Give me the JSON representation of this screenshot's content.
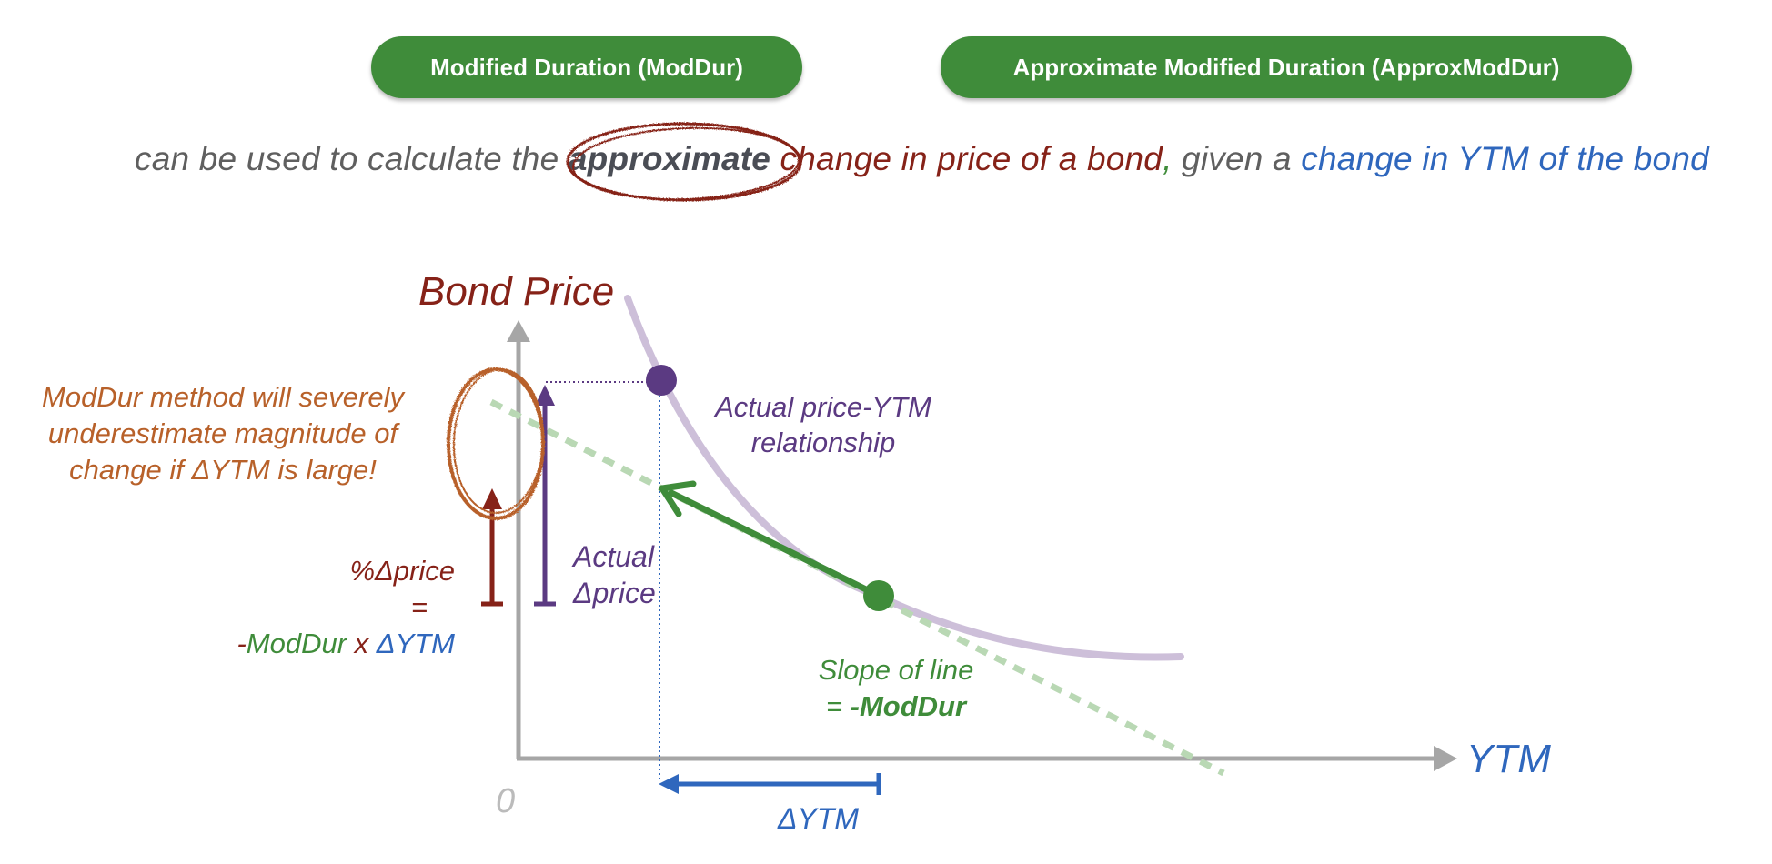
{
  "header": {
    "left_button": "Modified Duration (ModDur)",
    "right_button": "Approximate Modified Duration (ApproxModDur)"
  },
  "sentence": {
    "part1": "can be used to calculate the ",
    "emphasis": "approximate",
    "part2": " change in price of a bond",
    "comma": ",",
    "part3": " given a ",
    "part4": "change in YTM of the bond"
  },
  "diagram": {
    "y_axis_label": "Bond Price",
    "x_axis_label": "YTM",
    "origin_label": "0",
    "curve_label_line1": "Actual price-YTM",
    "curve_label_line2": "relationship",
    "slope_label_line1": "Slope of line",
    "slope_label_prefix": "= ",
    "slope_label_value": "-ModDur",
    "delta_ytm_label": "ΔYTM",
    "actual_label_line1": "Actual",
    "actual_label_line2": "Δprice",
    "pct_label_line1": "%Δprice",
    "pct_label_line2": "=",
    "formula_minus": "-",
    "formula_moddur": "ModDur",
    "formula_x": " x ",
    "formula_dytm": "ΔYTM",
    "warning_line1": "ModDur method will severely",
    "warning_line2": "underestimate magnitude of",
    "warning_line3": "change if ΔYTM is large!"
  },
  "colors": {
    "green": "#3f8c3a",
    "dark_red": "#862218",
    "blue": "#2f67bd",
    "purple": "#5b3a82",
    "orange": "#b8612a",
    "axis_gray": "#a6a6a6",
    "curve_lavender": "#cdbfd9",
    "tangent_light_green": "#b9d8b4"
  }
}
